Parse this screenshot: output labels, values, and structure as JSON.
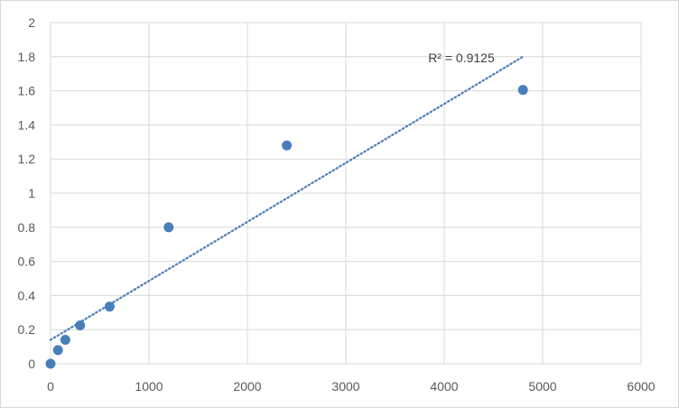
{
  "chart_data": {
    "type": "scatter",
    "title": "",
    "xlabel": "",
    "ylabel": "",
    "xlim": [
      0,
      6000
    ],
    "ylim": [
      0,
      2
    ],
    "xticks": [
      0,
      1000,
      2000,
      3000,
      4000,
      5000,
      6000
    ],
    "yticks": [
      0,
      0.2,
      0.4,
      0.6,
      0.8,
      1,
      1.2,
      1.4,
      1.6,
      1.8,
      2
    ],
    "xtick_labels": [
      "0",
      "1000",
      "2000",
      "3000",
      "4000",
      "5000",
      "6000"
    ],
    "ytick_labels": [
      "0",
      "0.2",
      "0.4",
      "0.6",
      "0.8",
      "1",
      "1.2",
      "1.4",
      "1.6",
      "1.8",
      "2"
    ],
    "grid": true,
    "legend": "none",
    "series": [
      {
        "x": [
          0,
          75,
          150,
          300,
          600,
          1200,
          2400,
          4800
        ],
        "y": [
          0.0,
          0.08,
          0.14,
          0.225,
          0.335,
          0.8,
          1.28,
          1.605
        ],
        "color": "#4a7ebb"
      }
    ],
    "trendline": {
      "type": "linear",
      "style": "dotted",
      "color": "#4a7ebb",
      "x": [
        0,
        4800
      ],
      "y": [
        0.14,
        1.8
      ]
    },
    "annotations": [
      {
        "text": "R² = 0.9125"
      }
    ]
  }
}
